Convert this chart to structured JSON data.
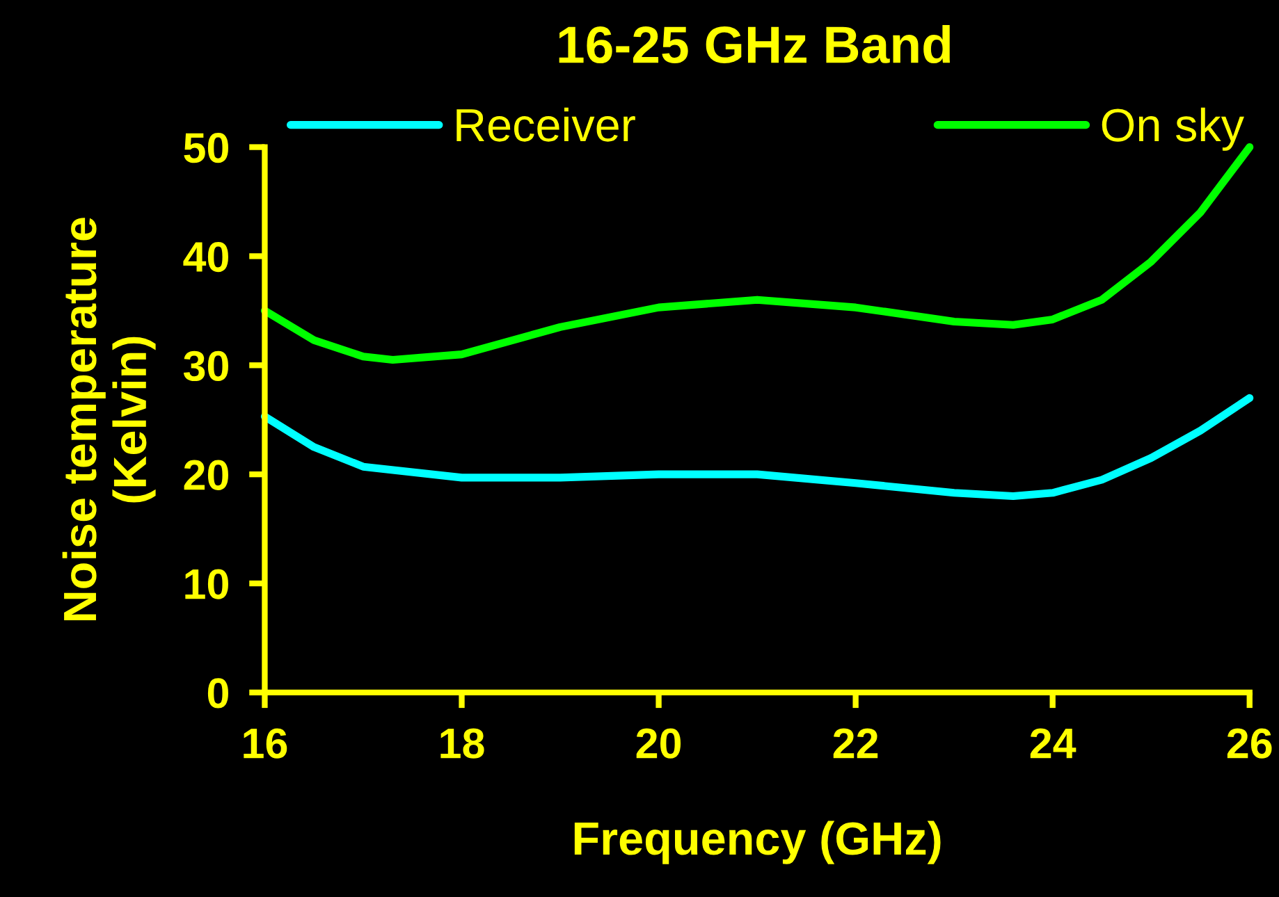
{
  "chart_data": {
    "type": "line",
    "title": "16-25 GHz Band",
    "xlabel": "Frequency (GHz)",
    "ylabel": "Noise temperature\n(Kelvin)",
    "xlim": [
      16,
      26
    ],
    "xticks": [
      16,
      18,
      20,
      22,
      24,
      26
    ],
    "ylim": [
      0,
      50
    ],
    "yticks": [
      0,
      10,
      20,
      30,
      40,
      50
    ],
    "grid": false,
    "legend": "top",
    "marker": "none",
    "line_style": "solid",
    "series": [
      {
        "name": "Receiver",
        "color": "#00ffff",
        "x": [
          16,
          16.5,
          17,
          18,
          19,
          20,
          21,
          22,
          23,
          23.6,
          24,
          24.5,
          25,
          25.5,
          26
        ],
        "values": [
          25.3,
          22.5,
          20.7,
          19.7,
          19.7,
          20,
          20,
          19.2,
          18.3,
          18,
          18.3,
          19.5,
          21.5,
          24,
          27
        ]
      },
      {
        "name": "On sky",
        "color": "#00ff00",
        "x": [
          16,
          16.5,
          17,
          17.3,
          18,
          19,
          20,
          21,
          22,
          23,
          23.6,
          24,
          24.5,
          25,
          25.5,
          26
        ],
        "values": [
          35,
          32.3,
          30.8,
          30.5,
          31,
          33.5,
          35.3,
          36,
          35.3,
          34,
          33.7,
          34.2,
          36,
          39.5,
          44,
          50
        ]
      }
    ]
  }
}
